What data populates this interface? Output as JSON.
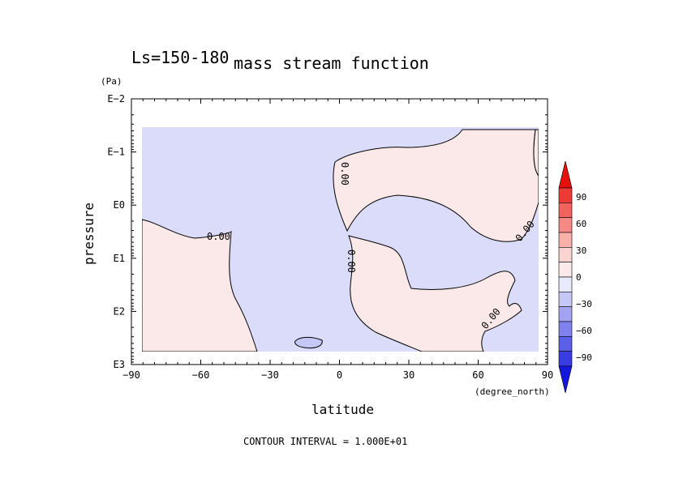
{
  "header": {
    "season": "Ls=150-180",
    "title": "mass stream function"
  },
  "chart_data": {
    "type": "contour",
    "title": "mass stream function",
    "subtitle": "Ls=150-180",
    "xlabel": "latitude",
    "x_units": "(degree_north)",
    "ylabel": "pressure",
    "y_units": "(Pa)",
    "x_ticks": [
      "−90",
      "−60",
      "−30",
      "0",
      "30",
      "60",
      "90"
    ],
    "y_ticks": [
      "E−2",
      "E−1",
      "E0",
      "E1",
      "E2",
      "E3"
    ],
    "xlim": [
      -90,
      90
    ],
    "ylim_log10_pa": [
      -2,
      3
    ],
    "y_scale": "log",
    "contour_label": "0.00",
    "contour_interval_text": "CONTOUR INTERVAL = 1.000E+01",
    "positive_color": "#fbe8e8",
    "negative_color": "#dadcfa",
    "colorbar": {
      "ticks": [
        "90",
        "60",
        "30",
        "0",
        "−30",
        "−60",
        "−90"
      ],
      "colors_top_to_bottom": [
        "#e8100c",
        "#ee3a34",
        "#f2635d",
        "#f58a85",
        "#f8b0ab",
        "#fad4d1",
        "#fbe8e8",
        "#e8e9fb",
        "#c5c7f6",
        "#a2a4f1",
        "#7f82ec",
        "#5c5fe8",
        "#393ce3",
        "#1418de"
      ]
    }
  }
}
